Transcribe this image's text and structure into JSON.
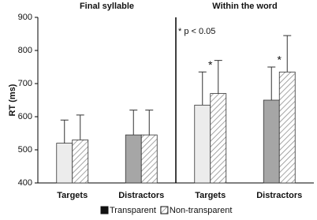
{
  "chart_data": {
    "type": "bar",
    "groups": [
      "Final syllable",
      "Within the word"
    ],
    "categories": [
      "Targets",
      "Distractors",
      "Targets",
      "Distractors"
    ],
    "y_label": "RT (ms)",
    "annotation": "* p < 0.05",
    "sig_labels": [
      null,
      null,
      "*",
      "*"
    ],
    "series": [
      {
        "name": "Transparent",
        "color": "#111111",
        "bar_colors": [
          "#ececec",
          "#a6a6a6",
          "#ececec",
          "#a6a6a6"
        ],
        "values": [
          520,
          545,
          635,
          650
        ],
        "errors": [
          70,
          75,
          100,
          100
        ]
      },
      {
        "name": "Non-transparent",
        "color": "#ffffff",
        "hatch": true,
        "values": [
          530,
          545,
          670,
          735
        ],
        "errors": [
          75,
          75,
          100,
          110
        ]
      }
    ],
    "ylim": [
      400,
      900
    ],
    "yticks": [
      400,
      500,
      600,
      700,
      800,
      900
    ]
  }
}
